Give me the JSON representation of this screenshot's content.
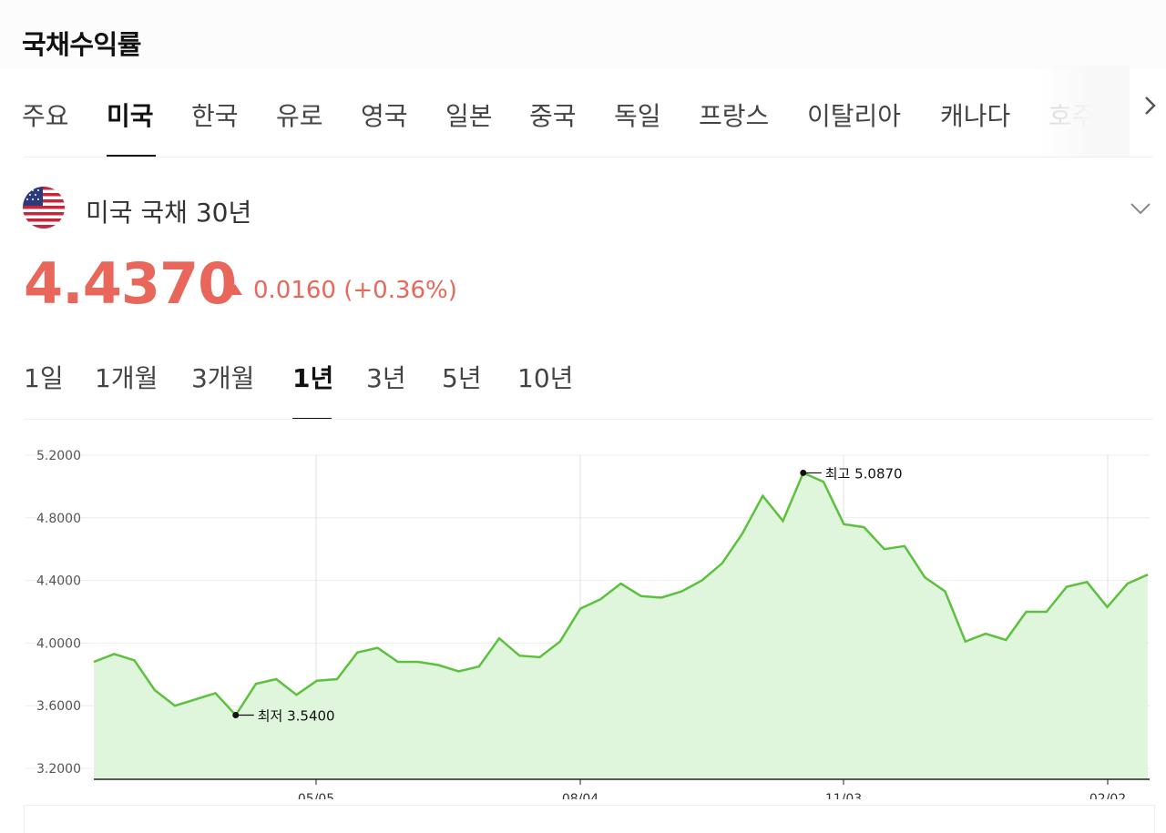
{
  "page": {
    "title": "국채수익률"
  },
  "country_tabs": [
    {
      "label": "주요"
    },
    {
      "label": "미국"
    },
    {
      "label": "한국"
    },
    {
      "label": "유로"
    },
    {
      "label": "영국"
    },
    {
      "label": "일본"
    },
    {
      "label": "중국"
    },
    {
      "label": "독일"
    },
    {
      "label": "프랑스"
    },
    {
      "label": "이탈리아"
    },
    {
      "label": "캐나다"
    },
    {
      "label": "호주"
    }
  ],
  "active_country": "미국",
  "bond": {
    "name": "미국 국채 30년",
    "flag": "us-flag-icon",
    "price": "4.4370",
    "change": "0.0160 (+0.36%)",
    "direction": "up",
    "color": "#e8675a"
  },
  "range_tabs": [
    {
      "label": "1일"
    },
    {
      "label": "1개월"
    },
    {
      "label": "3개월"
    },
    {
      "label": "1년"
    },
    {
      "label": "3년"
    },
    {
      "label": "5년"
    },
    {
      "label": "10년"
    }
  ],
  "active_range": "1년",
  "chart_data": {
    "type": "area",
    "y_ticks": [
      "5.2000",
      "4.8000",
      "4.4000",
      "4.0000",
      "3.6000",
      "3.2000"
    ],
    "ylim": [
      3.2,
      5.2
    ],
    "x_ticks": [
      "05/05",
      "08/04",
      "11/03",
      "02/02"
    ],
    "values": [
      3.88,
      3.93,
      3.89,
      3.7,
      3.6,
      3.64,
      3.68,
      3.54,
      3.74,
      3.77,
      3.67,
      3.76,
      3.77,
      3.94,
      3.97,
      3.88,
      3.88,
      3.86,
      3.82,
      3.85,
      4.03,
      3.92,
      3.91,
      4.01,
      4.22,
      4.28,
      4.38,
      4.3,
      4.29,
      4.33,
      4.4,
      4.51,
      4.7,
      4.94,
      4.78,
      5.087,
      5.03,
      4.76,
      4.74,
      4.6,
      4.62,
      4.42,
      4.33,
      4.01,
      4.06,
      4.02,
      4.2,
      4.2,
      4.36,
      4.39,
      4.23,
      4.38,
      4.437
    ],
    "max": {
      "label": "최고 5.0870",
      "value": 5.087
    },
    "min": {
      "label": "최저 3.5400",
      "value": 3.54
    },
    "line_color": "#5cc13d",
    "fill_color": "#dff5dc",
    "grid": true
  }
}
